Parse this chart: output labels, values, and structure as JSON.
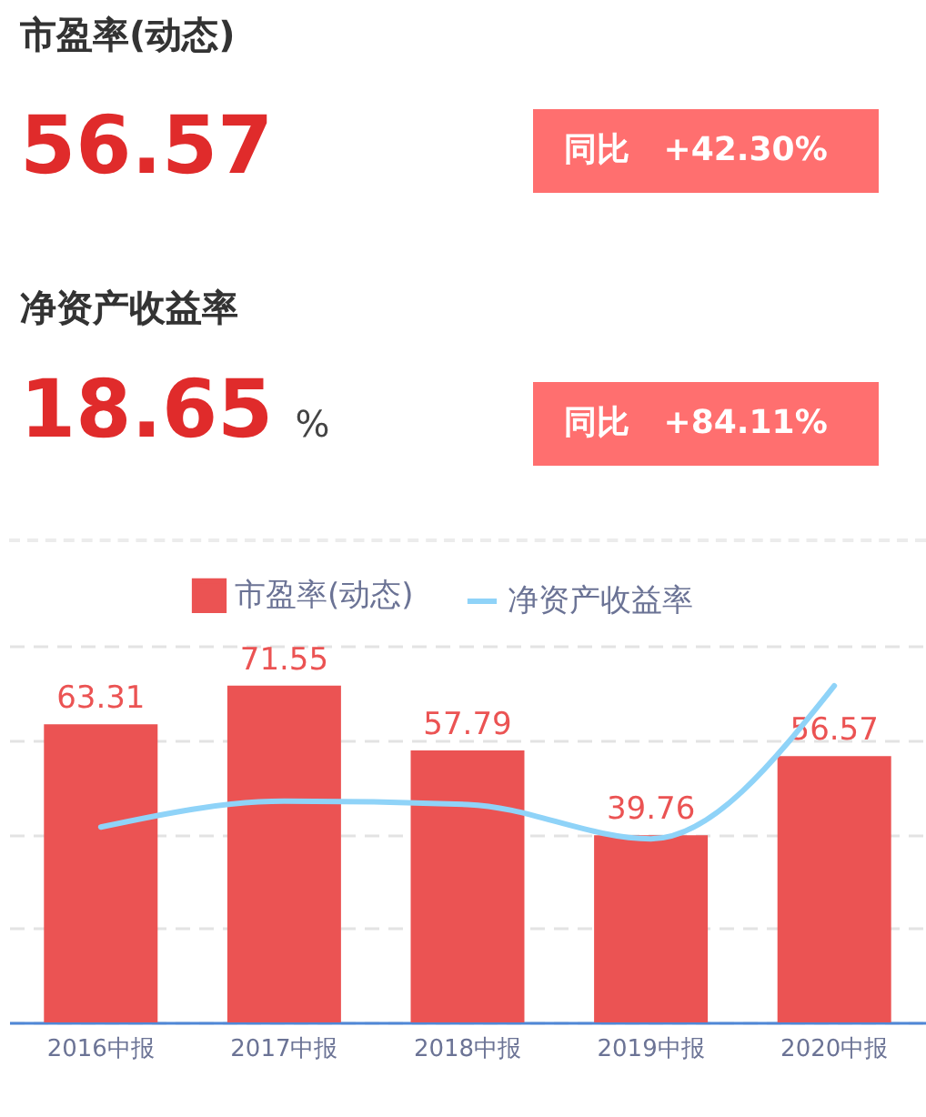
{
  "chart_data": [
    {
      "type": "other",
      "title": "市盈率(动态)",
      "annotations": [
        "56.57",
        "同比   +42.30%",
        "净资产收益率",
        "18.65",
        "%",
        "同比   +84.11%"
      ]
    },
    {
      "type": "bar",
      "categories": [
        "2016中报",
        "2017中报",
        "2018中报",
        "2019中报",
        "2020中报"
      ],
      "series": [
        {
          "name": "市盈率(动态)",
          "color": "#eb5353",
          "values": [
            63.31,
            71.55,
            57.79,
            39.76,
            56.57
          ],
          "value_labels": [
            "63.31",
            "71.55",
            "57.79",
            "39.76",
            "56.57"
          ]
        },
        {
          "name": "净资产收益率",
          "type": "line",
          "color": "#8fd3f8",
          "values": [
            41.5,
            47,
            46.3,
            39,
            71.5
          ]
        }
      ],
      "ylim": [
        0,
        80
      ],
      "yticks": [
        {
          "value": 0,
          "label": null
        },
        {
          "value": 20,
          "label": null
        },
        {
          "value": 40,
          "label": null
        },
        {
          "value": 60,
          "label": null
        },
        {
          "value": 80,
          "label": null
        }
      ],
      "tick_labels": "x",
      "grid": "y",
      "legend": "top"
    }
  ]
}
